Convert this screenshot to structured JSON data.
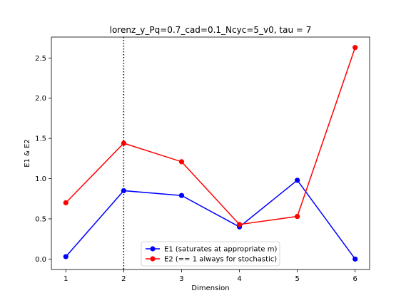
{
  "chart_data": {
    "type": "line",
    "title": "lorenz_y_Pq=0.7_cad=0.1_Ncyc=5_v0, tau = 7",
    "xlabel": "Dimension",
    "ylabel": "E1 & E2",
    "x": [
      1,
      2,
      3,
      4,
      5,
      6
    ],
    "xlim": [
      0.75,
      6.25
    ],
    "ylim": [
      -0.13,
      2.76
    ],
    "xticks": [
      1,
      2,
      3,
      4,
      5,
      6
    ],
    "yticks": [
      0.0,
      0.5,
      1.0,
      1.5,
      2.0,
      2.5
    ],
    "ytick_labels": [
      "0.0",
      "0.5",
      "1.0",
      "1.5",
      "2.0",
      "2.5"
    ],
    "vline": {
      "x": 2,
      "style": "dotted",
      "color": "#000000"
    },
    "grid": false,
    "legend_position": "lower-center",
    "series": [
      {
        "name": "E1 (saturates at appropriate m)",
        "color": "#0000ff",
        "values": [
          0.03,
          0.85,
          0.79,
          0.4,
          0.98,
          0.0
        ]
      },
      {
        "name": "E2 (== 1 always for stochastic)",
        "color": "#ff0000",
        "values": [
          0.7,
          1.44,
          1.21,
          0.43,
          0.53,
          2.63
        ]
      }
    ]
  }
}
